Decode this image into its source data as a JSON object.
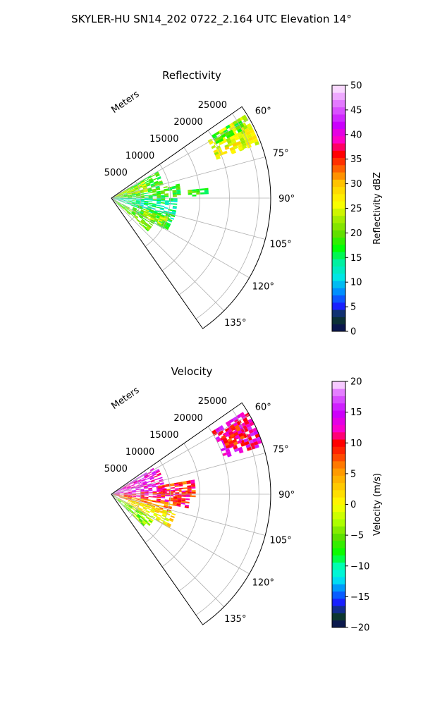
{
  "figure": {
    "suptitle": "SKYLER-HU  SN14_202  0722_2.164 UTC Elevation 14°"
  },
  "chart_data": [
    {
      "type": "polar-sector-scan",
      "title": "Reflectivity",
      "radial_label": "Meters",
      "radial_ticks": [
        5000,
        10000,
        15000,
        20000,
        25000
      ],
      "radial_tick_labels": [
        "5000",
        "10000",
        "15000",
        "20000",
        "25000"
      ],
      "r_max": 27000,
      "azimuth_range_deg": [
        55,
        145
      ],
      "azimuth_ticks": [
        60,
        75,
        90,
        105,
        120,
        135
      ],
      "azimuth_tick_labels": [
        "60°",
        "75°",
        "90°",
        "105°",
        "120°",
        "135°"
      ],
      "grid": true,
      "colorbar": {
        "label": "Reflectivity dBZ",
        "range": [
          0,
          50
        ],
        "ticks": [
          0,
          5,
          10,
          15,
          20,
          25,
          30,
          35,
          40,
          45,
          50
        ],
        "tick_labels": [
          "0",
          "5",
          "10",
          "15",
          "20",
          "25",
          "30",
          "35",
          "40",
          "45",
          "50"
        ],
        "colormap_stops": [
          [
            0,
            "#0a0a5a"
          ],
          [
            3,
            "#0d3d2a"
          ],
          [
            5,
            "#1a1aff"
          ],
          [
            8,
            "#008cff"
          ],
          [
            11,
            "#00e6e6"
          ],
          [
            14,
            "#00f0a0"
          ],
          [
            17,
            "#00ff00"
          ],
          [
            20,
            "#66dd00"
          ],
          [
            23,
            "#aaee00"
          ],
          [
            26,
            "#ffff00"
          ],
          [
            30,
            "#ffc800"
          ],
          [
            33,
            "#ff6400"
          ],
          [
            36,
            "#ff0000"
          ],
          [
            39,
            "#ff00c8"
          ],
          [
            42,
            "#c800ff"
          ],
          [
            46,
            "#e070ff"
          ],
          [
            50,
            "#fff0ff"
          ]
        ]
      },
      "echo_regions": [
        {
          "az": [
            58,
            70
          ],
          "r": [
            19000,
            26500
          ],
          "value": 25.5
        },
        {
          "az": [
            66,
            69
          ],
          "r": [
            21000,
            24500
          ],
          "value": 27
        },
        {
          "az": [
            58,
            62
          ],
          "r": [
            20000,
            25000
          ],
          "value": 19
        },
        {
          "az": [
            60,
            92
          ],
          "r": [
            0,
            8500
          ],
          "value": 18
        },
        {
          "az": [
            62,
            80
          ],
          "r": [
            0,
            6000
          ],
          "value": 24
        },
        {
          "az": [
            78,
            88
          ],
          "r": [
            9000,
            11500
          ],
          "value": 18
        },
        {
          "az": [
            84,
            88
          ],
          "r": [
            13000,
            16500
          ],
          "value": 18
        },
        {
          "az": [
            90,
            110
          ],
          "r": [
            0,
            11000
          ],
          "value": 14
        },
        {
          "az": [
            105,
            120
          ],
          "r": [
            4000,
            10500
          ],
          "value": 17
        },
        {
          "az": [
            108,
            118
          ],
          "r": [
            6000,
            10000
          ],
          "value": 24
        },
        {
          "az": [
            118,
            132
          ],
          "r": [
            0,
            8000
          ],
          "value": 20
        }
      ]
    },
    {
      "type": "polar-sector-scan",
      "title": "Velocity",
      "radial_label": "Meters",
      "radial_ticks": [
        5000,
        10000,
        15000,
        20000,
        25000
      ],
      "radial_tick_labels": [
        "5000",
        "10000",
        "15000",
        "20000",
        "25000"
      ],
      "r_max": 27000,
      "azimuth_range_deg": [
        55,
        145
      ],
      "azimuth_ticks": [
        60,
        75,
        90,
        105,
        120,
        135
      ],
      "azimuth_tick_labels": [
        "60°",
        "75°",
        "90°",
        "105°",
        "120°",
        "135°"
      ],
      "grid": true,
      "colorbar": {
        "label": "Velocity (m/s)",
        "range": [
          -20,
          20
        ],
        "ticks": [
          -20,
          -15,
          -10,
          -5,
          0,
          5,
          10,
          15,
          20
        ],
        "tick_labels": [
          "−20",
          "−15",
          "−10",
          "−5",
          "0",
          "5",
          "10",
          "15",
          "20"
        ],
        "colormap_stops": [
          [
            -20,
            "#0a0a5a"
          ],
          [
            -18,
            "#0d3d2a"
          ],
          [
            -16,
            "#1a1aff"
          ],
          [
            -14,
            "#0080ff"
          ],
          [
            -12,
            "#00f0f0"
          ],
          [
            -10,
            "#00ffb0"
          ],
          [
            -8,
            "#00ff00"
          ],
          [
            -5,
            "#66dd00"
          ],
          [
            -3,
            "#aaff00"
          ],
          [
            0,
            "#ffff00"
          ],
          [
            3,
            "#ffc800"
          ],
          [
            6,
            "#ff8c00"
          ],
          [
            8,
            "#ff3c00"
          ],
          [
            10,
            "#ff0000"
          ],
          [
            12,
            "#ff00c8"
          ],
          [
            15,
            "#c800ff"
          ],
          [
            18,
            "#e070ff"
          ],
          [
            20,
            "#fff0ff"
          ]
        ]
      },
      "echo_regions": [
        {
          "az": [
            58,
            72
          ],
          "r": [
            20000,
            27000
          ],
          "value": 13
        },
        {
          "az": [
            60,
            68
          ],
          "r": [
            21000,
            25000
          ],
          "value": 10
        },
        {
          "az": [
            58,
            86
          ],
          "r": [
            0,
            9000
          ],
          "value": 14
        },
        {
          "az": [
            80,
            92
          ],
          "r": [
            8000,
            14000
          ],
          "value": 9
        },
        {
          "az": [
            86,
            100
          ],
          "r": [
            0,
            13000
          ],
          "value": 10
        },
        {
          "az": [
            98,
            110
          ],
          "r": [
            0,
            10000
          ],
          "value": 6
        },
        {
          "az": [
            106,
            120
          ],
          "r": [
            3000,
            11000
          ],
          "value": 1
        },
        {
          "az": [
            118,
            134
          ],
          "r": [
            0,
            8000
          ],
          "value": -4
        }
      ]
    }
  ]
}
